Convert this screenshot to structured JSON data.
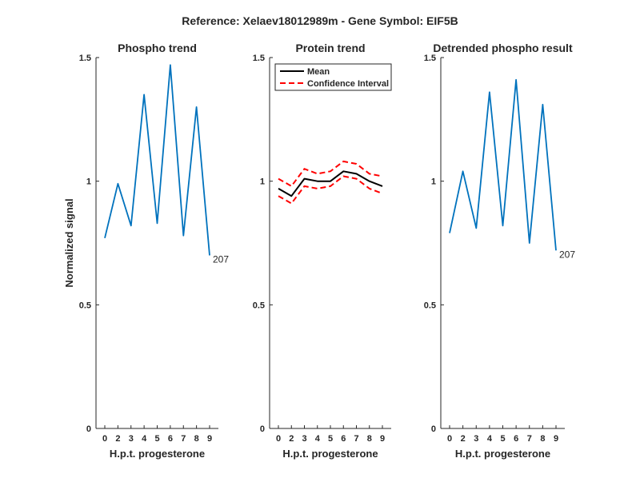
{
  "figure_title": "Reference:  Xelaev18012989m - Gene Symbol:  EIF5B",
  "chart_data": [
    {
      "type": "line",
      "title": "Phospho trend",
      "xlabel": "H.p.t. progesterone",
      "ylabel": "Normalized signal",
      "categories": [
        "0",
        "2",
        "3",
        "4",
        "5",
        "6",
        "7",
        "8",
        "9"
      ],
      "ylim": [
        0,
        1.5
      ],
      "yticks": [
        "0",
        "0.5",
        "1",
        "1.5"
      ],
      "series": [
        {
          "values": [
            0.77,
            0.99,
            0.82,
            1.35,
            0.83,
            1.47,
            0.78,
            1.3,
            0.7
          ],
          "color": "#0072bd",
          "style": "solid"
        }
      ],
      "annotations": [
        {
          "text": "207",
          "at_index": 8
        }
      ]
    },
    {
      "type": "line",
      "title": "Protein trend",
      "xlabel": "H.p.t. progesterone",
      "ylabel": "",
      "categories": [
        "0",
        "2",
        "3",
        "4",
        "5",
        "6",
        "7",
        "8",
        "9"
      ],
      "ylim": [
        0,
        1.5
      ],
      "yticks": [
        "0",
        "0.5",
        "1",
        "1.5"
      ],
      "series": [
        {
          "name": "Mean",
          "values": [
            0.97,
            0.94,
            1.01,
            1.0,
            1.0,
            1.04,
            1.03,
            1.0,
            0.98
          ],
          "color": "#000000",
          "style": "solid"
        },
        {
          "name": "Confidence Interval",
          "values": [
            1.01,
            0.98,
            1.05,
            1.03,
            1.04,
            1.08,
            1.07,
            1.03,
            1.02
          ],
          "color": "#ff0000",
          "style": "dashed"
        },
        {
          "values": [
            0.94,
            0.91,
            0.98,
            0.97,
            0.98,
            1.02,
            1.01,
            0.97,
            0.95
          ],
          "color": "#ff0000",
          "style": "dashed"
        }
      ],
      "legend": {
        "placement": "top-right",
        "entries": [
          "Mean",
          "Confidence Interval"
        ]
      },
      "annotations": []
    },
    {
      "type": "line",
      "title": "Detrended phospho result",
      "xlabel": "H.p.t. progesterone",
      "ylabel": "",
      "categories": [
        "0",
        "2",
        "3",
        "4",
        "5",
        "6",
        "7",
        "8",
        "9"
      ],
      "ylim": [
        0,
        1.5
      ],
      "yticks": [
        "0",
        "0.5",
        "1",
        "1.5"
      ],
      "series": [
        {
          "values": [
            0.79,
            1.04,
            0.81,
            1.36,
            0.82,
            1.41,
            0.75,
            1.31,
            0.72
          ],
          "color": "#0072bd",
          "style": "solid"
        }
      ],
      "annotations": [
        {
          "text": "207",
          "at_index": 8
        }
      ]
    }
  ]
}
